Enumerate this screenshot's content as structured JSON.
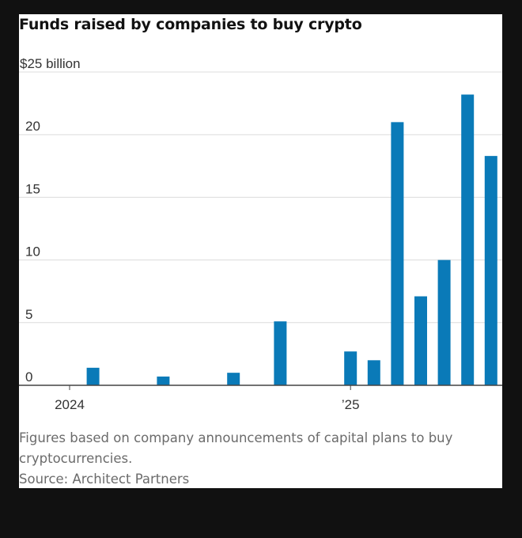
{
  "chart_data": {
    "type": "bar",
    "title": "Funds raised by companies to buy crypto",
    "ylabel": "$25 billion",
    "ylim": [
      0,
      25
    ],
    "yticks": [
      {
        "value": 0,
        "label": "0"
      },
      {
        "value": 5,
        "label": "5"
      },
      {
        "value": 10,
        "label": "10"
      },
      {
        "value": 15,
        "label": "15"
      },
      {
        "value": 20,
        "label": "20"
      }
    ],
    "xticks": [
      {
        "position": 0,
        "label": "2024"
      },
      {
        "position": 12,
        "label": "’25"
      }
    ],
    "x": [
      0,
      1,
      2,
      3,
      4,
      5,
      6,
      7,
      8,
      9,
      10,
      11,
      12,
      13,
      14,
      15,
      16,
      17,
      18
    ],
    "values": [
      0,
      1.4,
      0,
      0,
      0.7,
      0,
      0,
      1.0,
      0,
      5.1,
      0,
      0,
      2.7,
      2.0,
      21.0,
      7.1,
      10.0,
      23.2,
      18.3
    ],
    "color": "#0a7ab8",
    "grid": true,
    "notes": "Figures based on company announcements of capital plans to buy cryptocurrencies.",
    "source": "Source: Architect Partners"
  }
}
